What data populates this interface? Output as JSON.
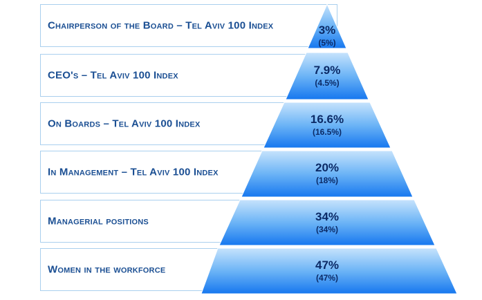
{
  "levels": [
    {
      "label": "Chairperson of the Board – Tel Aviv 100 Index",
      "value": "3%",
      "previous": "(5%)"
    },
    {
      "label": "CEO's – Tel Aviv 100 Index",
      "value": "7.9%",
      "previous": "(4.5%)"
    },
    {
      "label": "On Boards – Tel Aviv 100 Index",
      "value": "16.6%",
      "previous": "(16.5%)"
    },
    {
      "label": "In Management – Tel Aviv 100 Index",
      "value": "20%",
      "previous": "(18%)"
    },
    {
      "label": "Managerial positions",
      "value": "34%",
      "previous": "(34%)"
    },
    {
      "label": "Women in the workforce",
      "value": "47%",
      "previous": "(47%)"
    }
  ],
  "colors": {
    "top": "#b9ddfb",
    "bottom": "#1a7ef0",
    "label_text": "#1b4f93",
    "value_text": "#0b2a66",
    "border": "#a9cfee"
  }
}
